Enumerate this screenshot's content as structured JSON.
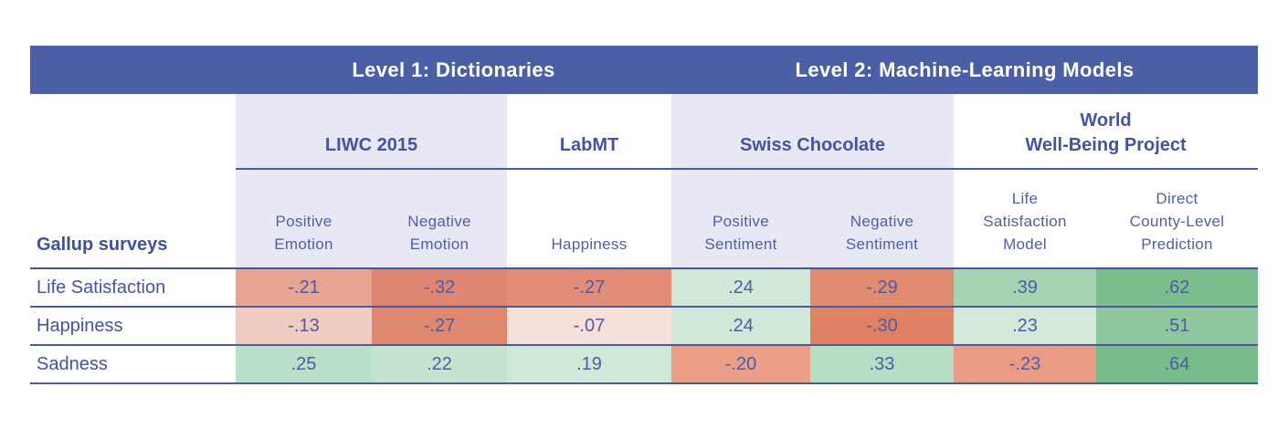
{
  "colors": {
    "band_bg": "#4a5fa6",
    "panel_bg": "#e7e8f3",
    "heading_text": "#44549e",
    "header_text": "#4f5fa5",
    "value_text": "#4c5ca6",
    "line": "#4a5a9e",
    "negative_strong": "#de8672",
    "positive_strong": "#78bb8b"
  },
  "band": {
    "level1": "Level 1: Dictionaries",
    "level2": "Level 2: Machine-Learning Models"
  },
  "groups": {
    "liwc": {
      "line1": "LIWC 2015"
    },
    "labmt": {
      "line1": "LabMT"
    },
    "swiss": {
      "line1": "Swiss Chocolate"
    },
    "wwbp": {
      "line1": "World",
      "line2": "Well-Being Project"
    }
  },
  "columns": [
    {
      "line1": "Positive",
      "line2": "Emotion"
    },
    {
      "line1": "Negative",
      "line2": "Emotion"
    },
    {
      "line1": "Happiness"
    },
    {
      "line1": "Positive",
      "line2": "Sentiment"
    },
    {
      "line1": "Negative",
      "line2": "Sentiment"
    },
    {
      "line1": "Life",
      "line2": "Satisfaction",
      "line3": "Model"
    },
    {
      "line1": "Direct",
      "line2": "County-Level",
      "line3": "Prediction"
    }
  ],
  "table": {
    "row_header_label": "Gallup surveys",
    "rows": [
      {
        "label": "Life Satisfaction",
        "cells": [
          {
            "text": "-.21",
            "bg": "#e7a592"
          },
          {
            "text": "-.32",
            "bg": "#de8672"
          },
          {
            "text": "-.27",
            "bg": "#e18d78"
          },
          {
            "text": ".24",
            "bg": "#d2e9da"
          },
          {
            "text": "-.29",
            "bg": "#e08a70"
          },
          {
            "text": ".39",
            "bg": "#a5d3b4"
          },
          {
            "text": ".62",
            "bg": "#7cbe8e"
          }
        ]
      },
      {
        "label": "Happiness",
        "cells": [
          {
            "text": "-.13",
            "bg": "#f0ccc3"
          },
          {
            "text": "-.27",
            "bg": "#e0886f"
          },
          {
            "text": "-.07",
            "bg": "#f7e0da"
          },
          {
            "text": ".24",
            "bg": "#d0e8d8"
          },
          {
            "text": "-.30",
            "bg": "#df8165"
          },
          {
            "text": ".23",
            "bg": "#d4e9da"
          },
          {
            "text": ".51",
            "bg": "#8fc69e"
          }
        ]
      },
      {
        "label": "Sadness",
        "cells": [
          {
            "text": ".25",
            "bg": "#badfc8"
          },
          {
            "text": ".22",
            "bg": "#c5e4cf"
          },
          {
            "text": ".19",
            "bg": "#d0e8d7"
          },
          {
            "text": "-.20",
            "bg": "#eb9e88"
          },
          {
            "text": ".33",
            "bg": "#b5dec4"
          },
          {
            "text": "-.23",
            "bg": "#ea9b84"
          },
          {
            "text": ".64",
            "bg": "#78bb8b"
          }
        ]
      }
    ]
  },
  "chart_data": {
    "type": "heatmap",
    "title": "Correlations between Gallup surveys and language-based well-being measures",
    "row_header": "Gallup surveys",
    "rows": [
      "Life Satisfaction",
      "Happiness",
      "Sadness"
    ],
    "column_groups": [
      {
        "level": "Level 1: Dictionaries",
        "method": "LIWC 2015",
        "columns": [
          "Positive Emotion",
          "Negative Emotion"
        ]
      },
      {
        "level": "Level 1: Dictionaries",
        "method": "LabMT",
        "columns": [
          "Happiness"
        ]
      },
      {
        "level": "Level 2: Machine-Learning Models",
        "method": "Swiss Chocolate",
        "columns": [
          "Positive Sentiment",
          "Negative Sentiment"
        ]
      },
      {
        "level": "Level 2: Machine-Learning Models",
        "method": "World Well-Being Project",
        "columns": [
          "Life Satisfaction Model",
          "Direct County-Level Prediction"
        ]
      }
    ],
    "columns": [
      "Positive Emotion",
      "Negative Emotion",
      "Happiness",
      "Positive Sentiment",
      "Negative Sentiment",
      "Life Satisfaction Model",
      "Direct County-Level Prediction"
    ],
    "values": [
      [
        -0.21,
        -0.32,
        -0.27,
        0.24,
        -0.29,
        0.39,
        0.62
      ],
      [
        -0.13,
        -0.27,
        -0.07,
        0.24,
        -0.3,
        0.23,
        0.51
      ],
      [
        0.25,
        0.22,
        0.19,
        -0.2,
        0.33,
        -0.23,
        0.64
      ]
    ],
    "legend": "red = negative correlation, green = positive correlation; intensity scales with magnitude",
    "grid": "horizontal row separators only"
  }
}
